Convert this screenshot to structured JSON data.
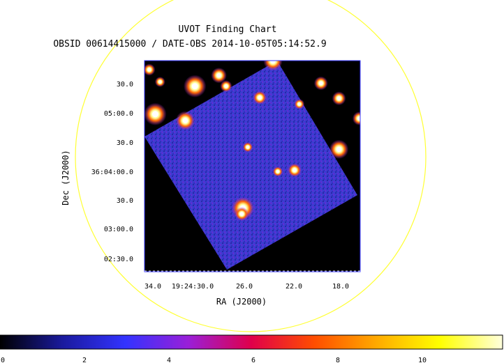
{
  "chart_data": {
    "type": "heatmap",
    "title": "UVOT Finding Chart",
    "subtitle": "OBSID 00614415000 / DATE-OBS 2014-10-05T05:14:52.9",
    "xlabel": "RA (J2000)",
    "ylabel": "Dec (J2000)",
    "x_ticks": [
      "34.0",
      "19:24:30.0",
      "26.0",
      "22.0",
      "18.0"
    ],
    "y_ticks": [
      "30.0",
      "05:00.0",
      "30.0",
      "36:04:00.0",
      "30.0",
      "03:00.0",
      "02:30.0"
    ],
    "colorbar": {
      "ticks": [
        "0",
        "2",
        "4",
        "6",
        "8",
        "10"
      ],
      "colormap": [
        "#000000",
        "#1a1a9e",
        "#3333ff",
        "#9a1fd8",
        "#e0004a",
        "#ff4d00",
        "#ffaa00",
        "#ffff00",
        "#ffffdd"
      ]
    },
    "background_color": "#3c3cd0",
    "sources": [
      {
        "ra": 30.5,
        "dec": 275,
        "brightness": 1.0
      },
      {
        "ra": 24.0,
        "dec": 310,
        "brightness": 0.8
      },
      {
        "ra": 28.5,
        "dec": 290,
        "brightness": 0.6
      },
      {
        "ra": 33.8,
        "dec": 236,
        "brightness": 1.0
      },
      {
        "ra": 31.3,
        "dec": 227,
        "brightness": 0.8
      },
      {
        "ra": 18.5,
        "dec": 187,
        "brightness": 0.8
      },
      {
        "ra": 22.2,
        "dec": 158,
        "brightness": 0.5
      },
      {
        "ra": 26.5,
        "dec": 105,
        "brightness": 1.0
      },
      {
        "ra": 26.6,
        "dec": 97,
        "brightness": 0.5
      },
      {
        "ra": 25.1,
        "dec": 259,
        "brightness": 0.5
      },
      {
        "ra": 20.0,
        "dec": 279,
        "brightness": 0.5
      },
      {
        "ra": 18.5,
        "dec": 258,
        "brightness": 0.5
      },
      {
        "ra": 16.8,
        "dec": 230,
        "brightness": 0.5
      },
      {
        "ra": 27.9,
        "dec": 275,
        "brightness": 0.4
      },
      {
        "ra": 34.3,
        "dec": 298,
        "brightness": 0.4
      },
      {
        "ra": 23.6,
        "dec": 156,
        "brightness": 0.3
      },
      {
        "ra": 26.1,
        "dec": 190,
        "brightness": 0.3
      },
      {
        "ra": 33.4,
        "dec": 281,
        "brightness": 0.3
      },
      {
        "ra": 21.8,
        "dec": 250,
        "brightness": 0.3
      }
    ]
  }
}
